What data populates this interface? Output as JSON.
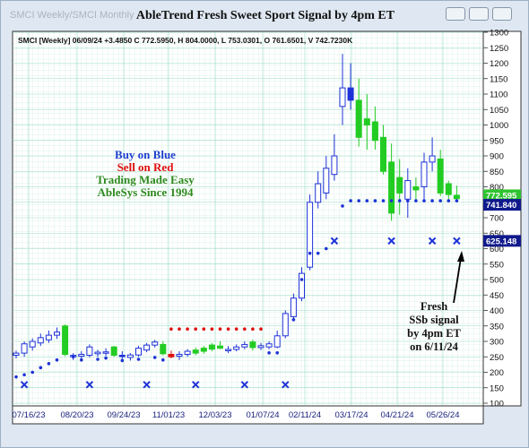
{
  "window": {
    "tabs_text": "SMCI Weekly/SMCI Monthly",
    "title": "AbleTrend Fresh Sweet Sport Signal by 4pm ET"
  },
  "chart_data": {
    "type": "candlestick",
    "info_line": "SMCI [Weekly] 06/09/24 +3.4850 C 772.5950, H 804.0000, L 753.0301, O 761.6501, V 742.7230K",
    "ylim": [
      100,
      1300
    ],
    "y_ticks": [
      1300,
      1250,
      1200,
      1150,
      1100,
      1050,
      1000,
      950,
      900,
      850,
      800,
      750,
      700,
      650,
      600,
      550,
      500,
      450,
      400,
      350,
      300,
      250,
      200,
      150,
      100
    ],
    "x_ticks": [
      "07/16/23",
      "08/20/23",
      "09/24/23",
      "11/01/23",
      "12/03/23",
      "01/07/24",
      "02/11/24",
      "03/17/24",
      "04/21/24",
      "05/26/24"
    ],
    "grid": true,
    "price_labels": [
      {
        "text": "772.595",
        "value": 772.595,
        "color": "green"
      },
      {
        "text": "741.840",
        "value": 741.84,
        "color": "blue"
      },
      {
        "text": "625.148",
        "value": 625.148,
        "color": "blue"
      }
    ],
    "bars": [
      {
        "o": 255,
        "h": 270,
        "l": 245,
        "c": 262,
        "color": "blue"
      },
      {
        "o": 262,
        "h": 300,
        "l": 250,
        "c": 292,
        "color": "blue"
      },
      {
        "o": 282,
        "h": 310,
        "l": 270,
        "c": 300,
        "color": "blue"
      },
      {
        "o": 295,
        "h": 325,
        "l": 285,
        "c": 312,
        "color": "blue"
      },
      {
        "o": 305,
        "h": 335,
        "l": 295,
        "c": 320,
        "color": "blue"
      },
      {
        "o": 320,
        "h": 345,
        "l": 308,
        "c": 330,
        "color": "blue"
      },
      {
        "o": 350,
        "h": 355,
        "l": 252,
        "c": 258,
        "color": "green"
      },
      {
        "o": 250,
        "h": 262,
        "l": 240,
        "c": 255,
        "color": "blue"
      },
      {
        "o": 252,
        "h": 268,
        "l": 242,
        "c": 258,
        "color": "blue"
      },
      {
        "o": 255,
        "h": 290,
        "l": 248,
        "c": 282,
        "color": "blue"
      },
      {
        "o": 260,
        "h": 272,
        "l": 250,
        "c": 265,
        "color": "blue"
      },
      {
        "o": 262,
        "h": 278,
        "l": 252,
        "c": 266,
        "color": "blue"
      },
      {
        "o": 282,
        "h": 285,
        "l": 250,
        "c": 255,
        "color": "green"
      },
      {
        "o": 255,
        "h": 268,
        "l": 242,
        "c": 252,
        "color": "blue"
      },
      {
        "o": 248,
        "h": 262,
        "l": 238,
        "c": 256,
        "color": "blue"
      },
      {
        "o": 256,
        "h": 285,
        "l": 250,
        "c": 278,
        "color": "blue"
      },
      {
        "o": 272,
        "h": 295,
        "l": 265,
        "c": 288,
        "color": "blue"
      },
      {
        "o": 288,
        "h": 305,
        "l": 280,
        "c": 298,
        "color": "blue"
      },
      {
        "o": 290,
        "h": 300,
        "l": 255,
        "c": 260,
        "color": "green"
      },
      {
        "o": 258,
        "h": 270,
        "l": 245,
        "c": 250,
        "color": "red"
      },
      {
        "o": 252,
        "h": 268,
        "l": 240,
        "c": 258,
        "color": "blue"
      },
      {
        "o": 258,
        "h": 275,
        "l": 250,
        "c": 268,
        "color": "blue"
      },
      {
        "o": 262,
        "h": 280,
        "l": 255,
        "c": 272,
        "color": "green"
      },
      {
        "o": 268,
        "h": 285,
        "l": 260,
        "c": 278,
        "color": "green"
      },
      {
        "o": 275,
        "h": 295,
        "l": 268,
        "c": 288,
        "color": "green"
      },
      {
        "o": 285,
        "h": 300,
        "l": 275,
        "c": 278,
        "color": "green"
      },
      {
        "o": 270,
        "h": 285,
        "l": 262,
        "c": 274,
        "color": "blue"
      },
      {
        "o": 274,
        "h": 290,
        "l": 268,
        "c": 282,
        "color": "blue"
      },
      {
        "o": 282,
        "h": 300,
        "l": 275,
        "c": 290,
        "color": "blue"
      },
      {
        "o": 298,
        "h": 305,
        "l": 270,
        "c": 280,
        "color": "green"
      },
      {
        "o": 280,
        "h": 295,
        "l": 272,
        "c": 286,
        "color": "blue"
      },
      {
        "o": 282,
        "h": 300,
        "l": 275,
        "c": 292,
        "color": "blue"
      },
      {
        "o": 282,
        "h": 335,
        "l": 278,
        "c": 318,
        "color": "blue"
      },
      {
        "o": 318,
        "h": 400,
        "l": 310,
        "c": 390,
        "color": "blue"
      },
      {
        "o": 380,
        "h": 455,
        "l": 370,
        "c": 440,
        "color": "blue"
      },
      {
        "o": 440,
        "h": 540,
        "l": 430,
        "c": 520,
        "color": "blue"
      },
      {
        "o": 540,
        "h": 775,
        "l": 530,
        "c": 750,
        "color": "blue"
      },
      {
        "o": 750,
        "h": 850,
        "l": 730,
        "c": 810,
        "color": "blue"
      },
      {
        "o": 780,
        "h": 900,
        "l": 760,
        "c": 860,
        "color": "blue"
      },
      {
        "o": 840,
        "h": 970,
        "l": 820,
        "c": 900,
        "color": "blue"
      },
      {
        "o": 1060,
        "h": 1230,
        "l": 1000,
        "c": 1120,
        "color": "blue"
      },
      {
        "o": 1120,
        "h": 1200,
        "l": 1050,
        "c": 1080,
        "color": "blue"
      },
      {
        "o": 1080,
        "h": 1150,
        "l": 930,
        "c": 960,
        "color": "green"
      },
      {
        "o": 1020,
        "h": 1100,
        "l": 920,
        "c": 1000,
        "color": "green"
      },
      {
        "o": 1010,
        "h": 1060,
        "l": 920,
        "c": 950,
        "color": "green"
      },
      {
        "o": 960,
        "h": 1000,
        "l": 840,
        "c": 850,
        "color": "green"
      },
      {
        "o": 880,
        "h": 940,
        "l": 690,
        "c": 715,
        "color": "green"
      },
      {
        "o": 830,
        "h": 890,
        "l": 710,
        "c": 780,
        "color": "green"
      },
      {
        "o": 760,
        "h": 860,
        "l": 700,
        "c": 820,
        "color": "blue"
      },
      {
        "o": 790,
        "h": 830,
        "l": 760,
        "c": 800,
        "color": "green"
      },
      {
        "o": 800,
        "h": 910,
        "l": 760,
        "c": 880,
        "color": "blue"
      },
      {
        "o": 880,
        "h": 960,
        "l": 850,
        "c": 900,
        "color": "blue"
      },
      {
        "o": 890,
        "h": 920,
        "l": 770,
        "c": 780,
        "color": "green"
      },
      {
        "o": 810,
        "h": 820,
        "l": 760,
        "c": 775,
        "color": "green"
      },
      {
        "o": 761.65,
        "h": 804,
        "l": 753.03,
        "c": 772.595,
        "color": "green"
      }
    ],
    "stop_dots": [
      {
        "bar": 0,
        "y": 185,
        "color": "blue"
      },
      {
        "bar": 1,
        "y": 192,
        "color": "blue"
      },
      {
        "bar": 2,
        "y": 200,
        "color": "blue"
      },
      {
        "bar": 3,
        "y": 215,
        "color": "blue"
      },
      {
        "bar": 4,
        "y": 228,
        "color": "blue"
      },
      {
        "bar": 5,
        "y": 240,
        "color": "blue"
      },
      {
        "bar": 7,
        "y": 250,
        "color": "blue"
      },
      {
        "bar": 8,
        "y": 240,
        "color": "blue"
      },
      {
        "bar": 10,
        "y": 242,
        "color": "blue"
      },
      {
        "bar": 11,
        "y": 246,
        "color": "blue"
      },
      {
        "bar": 13,
        "y": 238,
        "color": "blue"
      },
      {
        "bar": 15,
        "y": 242,
        "color": "blue"
      },
      {
        "bar": 17,
        "y": 248,
        "color": "blue"
      },
      {
        "bar": 18,
        "y": 240,
        "color": "blue"
      },
      {
        "bar": 19,
        "y": 340,
        "color": "red"
      },
      {
        "bar": 20,
        "y": 340,
        "color": "red"
      },
      {
        "bar": 21,
        "y": 340,
        "color": "red"
      },
      {
        "bar": 22,
        "y": 340,
        "color": "red"
      },
      {
        "bar": 23,
        "y": 340,
        "color": "red"
      },
      {
        "bar": 24,
        "y": 340,
        "color": "red"
      },
      {
        "bar": 25,
        "y": 340,
        "color": "red"
      },
      {
        "bar": 26,
        "y": 340,
        "color": "red"
      },
      {
        "bar": 27,
        "y": 340,
        "color": "red"
      },
      {
        "bar": 28,
        "y": 340,
        "color": "red"
      },
      {
        "bar": 29,
        "y": 340,
        "color": "red"
      },
      {
        "bar": 30,
        "y": 340,
        "color": "red"
      },
      {
        "bar": 31,
        "y": 263,
        "color": "blue"
      },
      {
        "bar": 32,
        "y": 263,
        "color": "blue"
      },
      {
        "bar": 34,
        "y": 370,
        "color": "blue"
      },
      {
        "bar": 35,
        "y": 500,
        "color": "blue"
      },
      {
        "bar": 36,
        "y": 585,
        "color": "blue"
      },
      {
        "bar": 37,
        "y": 585,
        "color": "blue"
      },
      {
        "bar": 38,
        "y": 600,
        "color": "blue"
      },
      {
        "bar": 40,
        "y": 738,
        "color": "blue"
      },
      {
        "bar": 41,
        "y": 755,
        "color": "blue"
      },
      {
        "bar": 42,
        "y": 755,
        "color": "blue"
      },
      {
        "bar": 43,
        "y": 755,
        "color": "blue"
      },
      {
        "bar": 44,
        "y": 755,
        "color": "blue"
      },
      {
        "bar": 45,
        "y": 755,
        "color": "blue"
      },
      {
        "bar": 46,
        "y": 755,
        "color": "blue"
      },
      {
        "bar": 47,
        "y": 755,
        "color": "blue"
      },
      {
        "bar": 48,
        "y": 755,
        "color": "blue"
      },
      {
        "bar": 49,
        "y": 755,
        "color": "blue"
      },
      {
        "bar": 50,
        "y": 755,
        "color": "blue"
      },
      {
        "bar": 51,
        "y": 755,
        "color": "blue"
      },
      {
        "bar": 52,
        "y": 755,
        "color": "blue"
      },
      {
        "bar": 53,
        "y": 755,
        "color": "blue"
      },
      {
        "bar": 54,
        "y": 755,
        "color": "blue"
      }
    ],
    "x_marks": [
      {
        "bar": 1,
        "y": 160
      },
      {
        "bar": 9,
        "y": 160
      },
      {
        "bar": 16,
        "y": 160
      },
      {
        "bar": 22,
        "y": 160
      },
      {
        "bar": 28,
        "y": 160
      },
      {
        "bar": 33,
        "y": 160
      },
      {
        "bar": 39,
        "y": 625
      },
      {
        "bar": 46,
        "y": 625
      },
      {
        "bar": 51,
        "y": 625
      },
      {
        "bar": 54,
        "y": 625
      }
    ],
    "annotations": {
      "legend_blue": "Buy on Blue",
      "legend_red": "Sell on Red",
      "legend_green1": "Trading Made Easy",
      "legend_green2": "AbleSys Since 1994",
      "note_lines": [
        "Fresh",
        "SSb signal",
        "by 4pm ET",
        "on 6/11/24"
      ]
    }
  }
}
